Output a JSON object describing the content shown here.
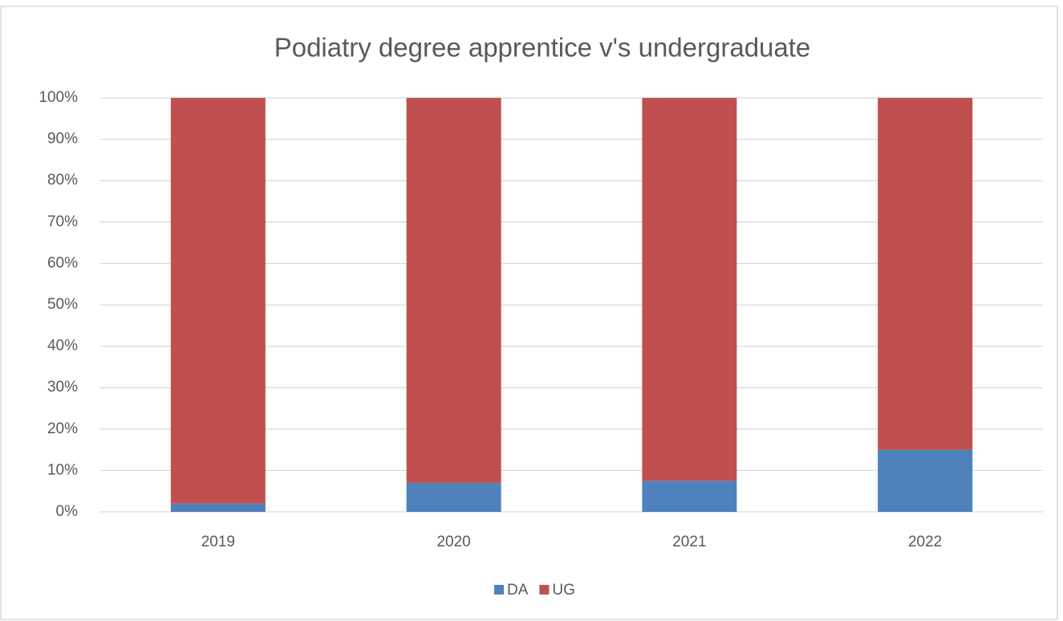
{
  "chart_data": {
    "type": "stacked_bar",
    "title": "Podiatry degree apprentice v's undergraduate",
    "categories": [
      "2019",
      "2020",
      "2021",
      "2022"
    ],
    "series": [
      {
        "name": "DA",
        "color": "#4f81bd",
        "values": [
          2,
          7,
          7.5,
          15
        ]
      },
      {
        "name": "UG",
        "color": "#c0504d",
        "values": [
          98,
          93,
          92.5,
          85
        ]
      }
    ],
    "ylim": [
      0,
      100
    ],
    "yticks": [
      {
        "value": 0,
        "label": "0%"
      },
      {
        "value": 10,
        "label": "10%"
      },
      {
        "value": 20,
        "label": "20%"
      },
      {
        "value": 30,
        "label": "30%"
      },
      {
        "value": 40,
        "label": "40%"
      },
      {
        "value": 50,
        "label": "50%"
      },
      {
        "value": 60,
        "label": "60%"
      },
      {
        "value": 70,
        "label": "70%"
      },
      {
        "value": 80,
        "label": "80%"
      },
      {
        "value": 90,
        "label": "90%"
      },
      {
        "value": 100,
        "label": "100%"
      }
    ],
    "grid": true,
    "legend": "bottom"
  }
}
